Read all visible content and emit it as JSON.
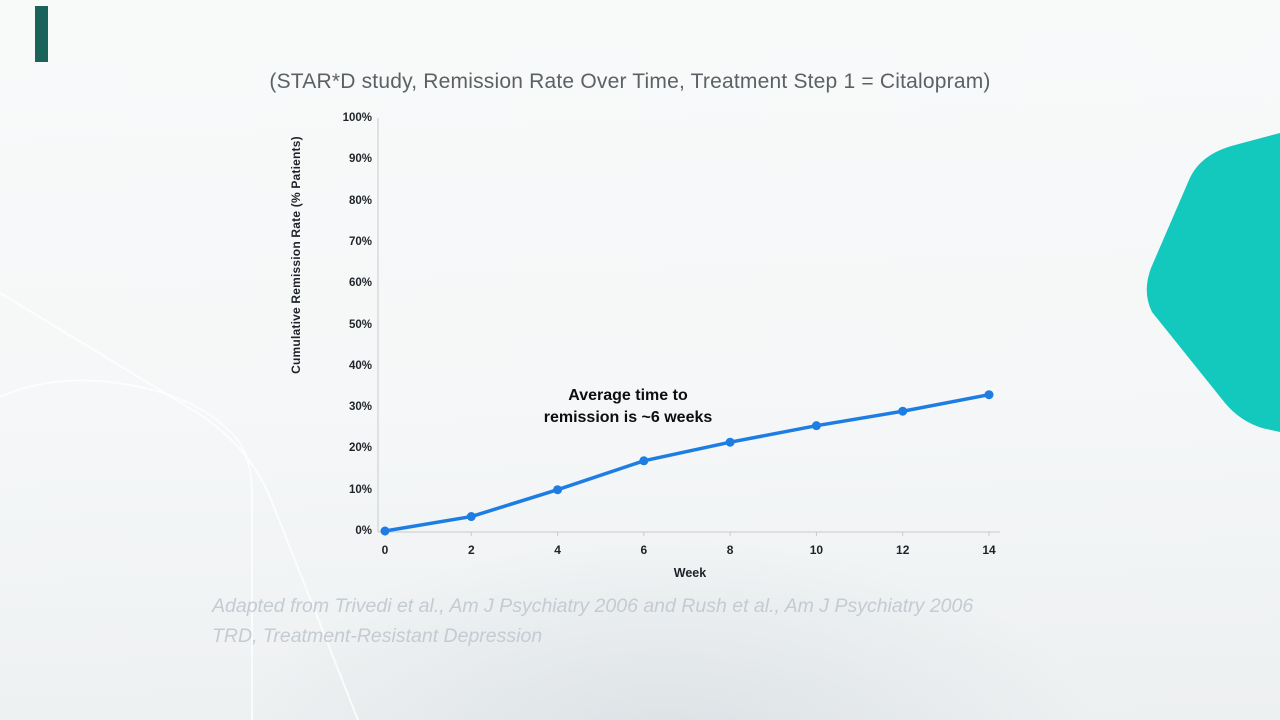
{
  "slide": {
    "title": "(STAR*D study, Remission Rate Over Time, Treatment Step 1 = Citalopram)",
    "footer_line1": "Adapted from Trivedi et al., Am J Psychiatry 2006 and Rush et al., Am J Psychiatry 2006",
    "footer_line2": "TRD, Treatment-Resistant Depression",
    "accent_teal": "#13c8bd",
    "accent_bar_color": "#1a635b"
  },
  "chart_data": {
    "type": "line",
    "title": "",
    "x": [
      0,
      2,
      4,
      6,
      8,
      10,
      12,
      14
    ],
    "series": [
      {
        "name": "Cumulative remission rate",
        "color": "#1d7de2",
        "values": [
          0,
          3.5,
          10,
          17,
          21.5,
          25.5,
          29,
          33
        ]
      }
    ],
    "xlabel": "Week",
    "ylabel": "Cumulative Remission Rate (% Patients)",
    "ylim": [
      0,
      100
    ],
    "xlim": [
      0,
      14
    ],
    "y_ticks": [
      "0%",
      "10%",
      "20%",
      "30%",
      "40%",
      "50%",
      "60%",
      "70%",
      "80%",
      "90%",
      "100%"
    ],
    "x_ticks": [
      "0",
      "2",
      "4",
      "6",
      "8",
      "10",
      "12",
      "14"
    ],
    "grid": false,
    "legend": false,
    "axis_color": "#c7ccd1",
    "annotation": {
      "line1": "Average time to",
      "line2": "remission is ~6 weeks"
    }
  }
}
